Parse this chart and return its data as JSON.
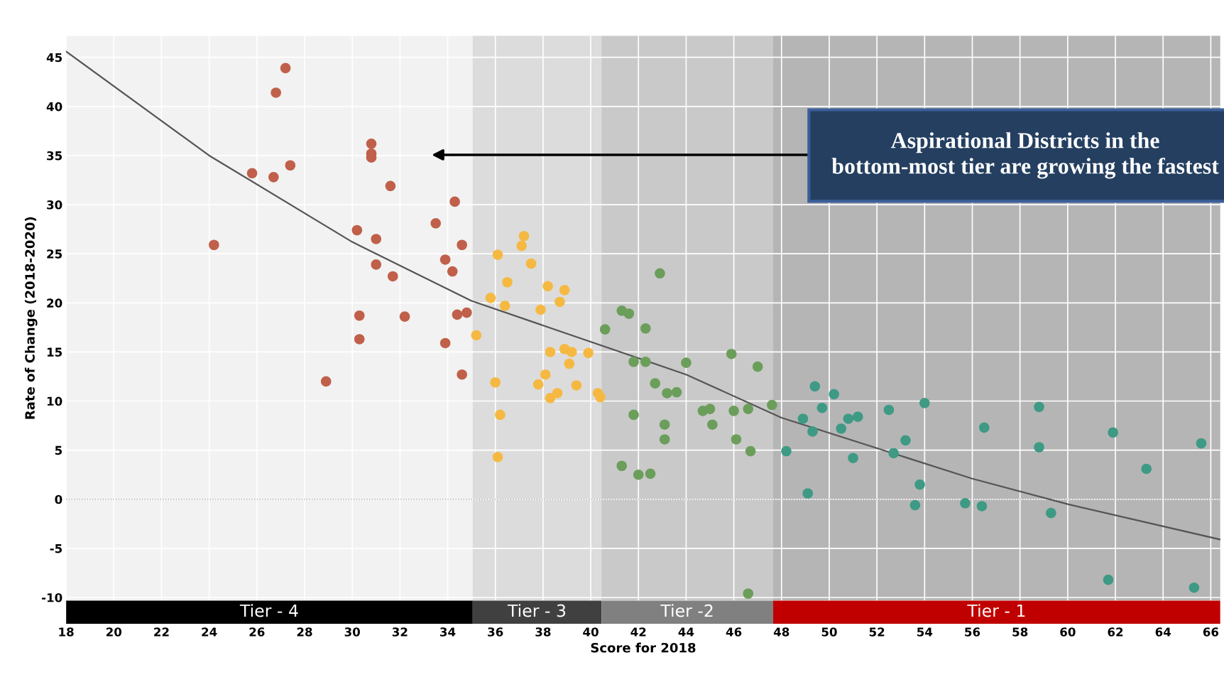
{
  "chart_data": {
    "type": "scatter",
    "xlabel": "Score for 2018",
    "ylabel": "Rate of Change (2018-2020)",
    "xlim": [
      18,
      66.4
    ],
    "ylim": [
      -10.3,
      47.2
    ],
    "xticks": [
      18,
      20,
      22,
      24,
      26,
      28,
      30,
      32,
      34,
      36,
      38,
      40,
      42,
      44,
      46,
      48,
      50,
      52,
      54,
      56,
      58,
      60,
      62,
      64,
      66
    ],
    "yticks": [
      -10,
      -5,
      0,
      5,
      10,
      15,
      20,
      25,
      30,
      35,
      40,
      45
    ],
    "grid": true,
    "marker": "circle",
    "bands": [
      {
        "axis": "x",
        "from": 18,
        "to": 35.05,
        "label": "Tier - 4",
        "color": "#f2f2f2"
      },
      {
        "axis": "x",
        "from": 35.05,
        "to": 40.45,
        "label": "Tier - 3",
        "color": "#dcdcdc"
      },
      {
        "axis": "x",
        "from": 40.45,
        "to": 47.65,
        "label": "Tier -2",
        "color": "#c9c9c9"
      },
      {
        "axis": "x",
        "from": 47.65,
        "to": 66.4,
        "label": "Tier - 1",
        "color": "#b5b5b5"
      }
    ],
    "ref_lines": [
      {
        "axis": "y",
        "value": 0,
        "line_style": "dotted",
        "color": "#aaaaaa"
      }
    ],
    "annotations": [
      "Aspirational Districts in the bottom-most tier are growing the fastest"
    ],
    "series": [
      {
        "color": "#c0604a",
        "x": [
          24.2,
          25.8,
          26.7,
          26.8,
          27.2,
          27.4,
          28.9,
          30.2,
          30.3,
          30.3,
          30.8,
          30.8,
          30.8,
          31.0,
          31.0,
          31.6,
          31.7,
          32.2,
          33.5,
          33.9,
          33.9,
          34.2,
          34.3,
          34.4,
          34.6,
          34.8,
          34.6
        ],
        "values": [
          25.9,
          33.2,
          32.8,
          41.4,
          43.9,
          34.0,
          12.0,
          27.4,
          18.7,
          16.3,
          36.2,
          35.2,
          34.8,
          26.5,
          23.9,
          31.9,
          22.7,
          18.6,
          28.1,
          15.9,
          24.4,
          23.2,
          30.3,
          18.8,
          25.9,
          19.0,
          12.7
        ]
      },
      {
        "color": "#f5b942",
        "x": [
          35.2,
          35.8,
          36.1,
          36.0,
          36.2,
          36.1,
          36.4,
          36.5,
          37.1,
          37.2,
          37.5,
          37.8,
          37.9,
          38.1,
          38.2,
          38.3,
          38.3,
          38.6,
          38.7,
          38.9,
          38.9,
          39.1,
          39.2,
          39.4,
          39.9,
          40.3,
          40.4
        ],
        "values": [
          16.7,
          20.5,
          24.9,
          11.9,
          8.6,
          4.3,
          19.7,
          22.1,
          25.8,
          26.8,
          24.0,
          11.7,
          19.3,
          12.7,
          21.7,
          15.0,
          10.3,
          10.8,
          20.1,
          21.3,
          15.3,
          13.8,
          15.0,
          11.6,
          14.9,
          10.8,
          10.4
        ]
      },
      {
        "color": "#6b9e5a",
        "x": [
          40.6,
          41.3,
          41.3,
          41.6,
          41.8,
          41.8,
          42.0,
          42.3,
          42.3,
          42.5,
          42.7,
          42.9,
          43.1,
          43.1,
          43.2,
          43.6,
          44.0,
          44.7,
          45.0,
          45.1,
          45.9,
          46.0,
          46.1,
          46.6,
          46.6,
          46.7,
          47.0,
          47.6
        ],
        "values": [
          17.3,
          19.2,
          3.4,
          18.9,
          14.0,
          8.6,
          2.5,
          17.4,
          14.0,
          2.6,
          11.8,
          23.0,
          6.1,
          7.6,
          10.8,
          10.9,
          13.9,
          9.0,
          9.2,
          7.6,
          14.8,
          9.0,
          6.1,
          9.2,
          -9.6,
          4.9,
          13.5,
          9.6
        ]
      },
      {
        "color": "#3e9a84",
        "x": [
          48.2,
          48.9,
          49.1,
          49.3,
          49.4,
          49.7,
          50.2,
          50.5,
          50.8,
          51.0,
          51.2,
          52.5,
          52.7,
          53.2,
          53.6,
          53.8,
          54.0,
          55.7,
          56.4,
          56.5,
          58.8,
          58.8,
          59.3,
          61.7,
          61.9,
          63.3,
          65.3,
          65.6
        ],
        "values": [
          4.9,
          8.2,
          0.6,
          6.9,
          11.5,
          9.3,
          10.7,
          7.2,
          8.2,
          4.2,
          8.4,
          9.1,
          4.7,
          6.0,
          -0.6,
          1.5,
          9.8,
          -0.4,
          -0.7,
          7.3,
          9.4,
          5.3,
          -1.4,
          -8.2,
          6.8,
          3.1,
          -9.0,
          5.7
        ]
      },
      {
        "type": "line",
        "color": "#555555",
        "marker": "none",
        "x": [
          18,
          24,
          30,
          35,
          44,
          48,
          56,
          60,
          66.4
        ],
        "values": [
          45.6,
          35.0,
          26.2,
          20.2,
          12.7,
          8.3,
          2.1,
          -0.5,
          -4.1
        ]
      }
    ]
  }
}
